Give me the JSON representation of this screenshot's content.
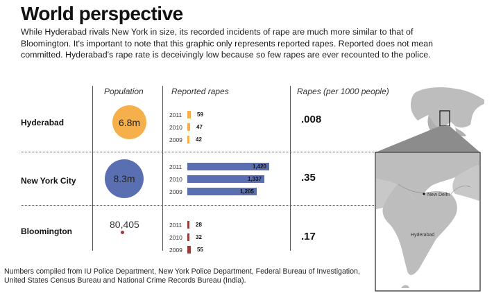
{
  "title": "World perspective",
  "intro": "While Hyderabad rivals New York in size, its recorded incidents of rape are much more similar to that of Bloomington. It's important to note that this graphic only represents reported rapes. Reported does not mean committed. Hyderabad's rape rate is deceivingly low because so few rapes are ever recounted to the police.",
  "columns": {
    "population": "Population",
    "reported": "Reported rapes",
    "rate": "Rapes (per 1000 people)"
  },
  "colors": {
    "hyderabad": "#f5b04b",
    "newyork": "#5a6fb2",
    "bloomington": "#9b3a3a",
    "map_land": "#bdbdbd",
    "map_sea": "#ffffff"
  },
  "chart_data": {
    "type": "bar",
    "cities": [
      {
        "name": "Hyderabad",
        "population_label": "6.8m",
        "population": 6800000,
        "rate": ".008",
        "years": [
          "2011",
          "2010",
          "2009"
        ],
        "values": [
          59,
          47,
          42
        ],
        "value_labels": [
          "59",
          "47",
          "42"
        ]
      },
      {
        "name": "New York City",
        "population_label": "8.3m",
        "population": 8300000,
        "rate": ".35",
        "years": [
          "2011",
          "2010",
          "2009"
        ],
        "values": [
          1420,
          1337,
          1205
        ],
        "value_labels": [
          "1,420",
          "1,337",
          "1,205"
        ]
      },
      {
        "name": "Bloomington",
        "population_label": "80,405",
        "population": 80405,
        "rate": ".17",
        "years": [
          "2011",
          "2010",
          "2009"
        ],
        "values": [
          28,
          32,
          55
        ],
        "value_labels": [
          "28",
          "32",
          "55"
        ]
      }
    ]
  },
  "map": {
    "label_newdelhi": "New Delhi",
    "label_hyderabad": "Hyderabad"
  },
  "footer": "Numbers compiled from IU Police Department, New York Police Department, Federal Bureau of Investigation, United States Census Bureau and National Crime Records Bureau (India)."
}
